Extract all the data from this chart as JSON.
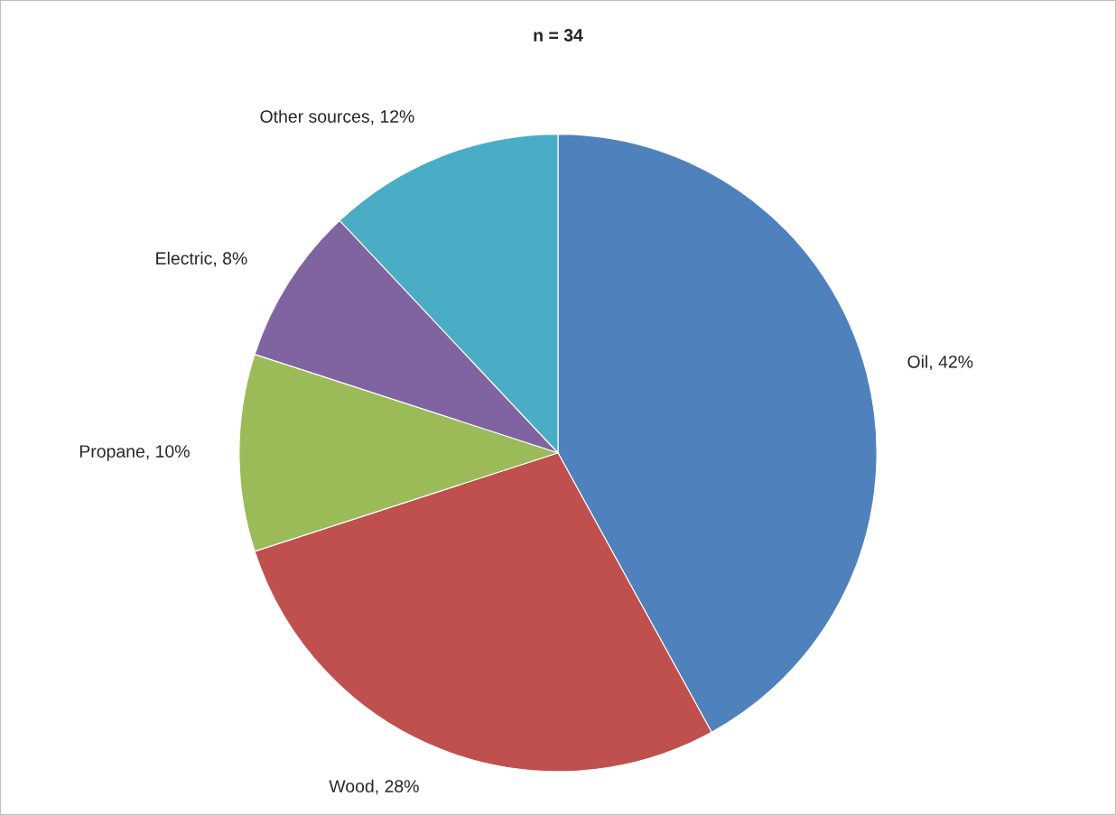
{
  "chart_data": {
    "type": "pie",
    "title": "n = 34",
    "categories": [
      "Oil",
      "Wood",
      "Propane",
      "Electric",
      "Other sources"
    ],
    "values": [
      42,
      28,
      10,
      8,
      12
    ],
    "colors": [
      "#4f81bd",
      "#c0504d",
      "#9bbb59",
      "#8064a2",
      "#4bacc6"
    ],
    "value_labels": [
      ", 42%",
      ", 28%",
      ", 10%",
      ", 8%",
      ", 12%"
    ],
    "legend": false
  }
}
